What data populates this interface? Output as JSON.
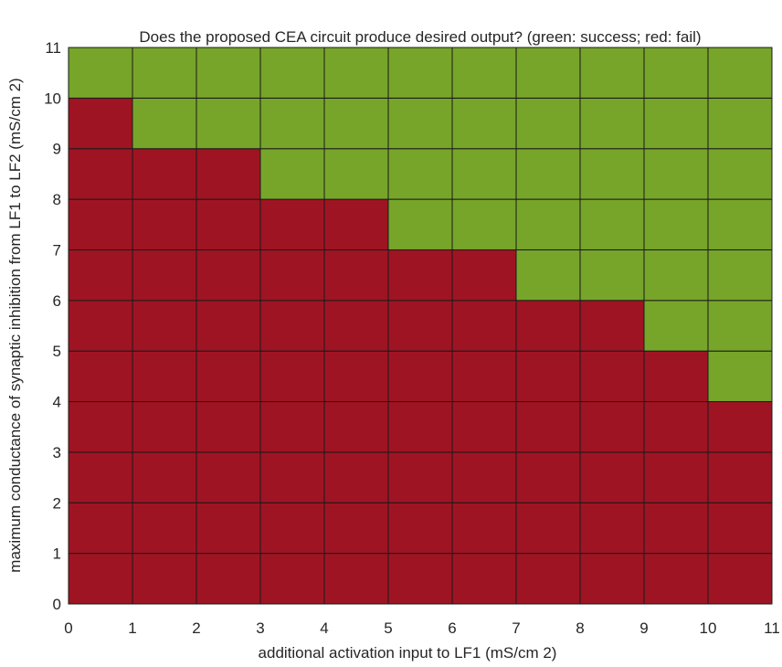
{
  "chart_data": {
    "type": "heatmap",
    "title": "Does the proposed CEA circuit produce desired output? (green: success; red: fail)",
    "xlabel": "additional activation input to LF1   (mS/cm 2)",
    "ylabel": "maximum conductance of synaptic inhibition from LF1 to LF2   (mS/cm 2)",
    "xlim": [
      0,
      11
    ],
    "ylim": [
      0,
      11
    ],
    "x_ticks": [
      "0",
      "1",
      "2",
      "3",
      "4",
      "5",
      "6",
      "7",
      "8",
      "9",
      "10",
      "11"
    ],
    "y_ticks": [
      "0",
      "1",
      "2",
      "3",
      "4",
      "5",
      "6",
      "7",
      "8",
      "9",
      "10",
      "11"
    ],
    "colors": {
      "success": "#77a52a",
      "fail": "#9f1423"
    },
    "legend": [
      {
        "label": "green: success",
        "color": "#77a52a"
      },
      {
        "label": "red: fail",
        "color": "#9f1423"
      }
    ],
    "x_bins": [
      [
        0,
        1
      ],
      [
        1,
        2
      ],
      [
        2,
        3
      ],
      [
        3,
        4
      ],
      [
        4,
        5
      ],
      [
        5,
        6
      ],
      [
        6,
        7
      ],
      [
        7,
        8
      ],
      [
        8,
        9
      ],
      [
        9,
        10
      ],
      [
        10,
        11
      ]
    ],
    "y_bins": [
      [
        0,
        1
      ],
      [
        1,
        2
      ],
      [
        2,
        3
      ],
      [
        3,
        4
      ],
      [
        4,
        5
      ],
      [
        5,
        6
      ],
      [
        6,
        7
      ],
      [
        7,
        8
      ],
      [
        8,
        9
      ],
      [
        9,
        10
      ],
      [
        10,
        11
      ]
    ],
    "success_threshold": {
      "description": "lowest inhibition conductance at which output succeeds, per activation-input bin",
      "x_bins": [
        [
          0,
          1
        ],
        [
          1,
          2
        ],
        [
          2,
          3
        ],
        [
          3,
          4
        ],
        [
          4,
          5
        ],
        [
          5,
          6
        ],
        [
          6,
          7
        ],
        [
          7,
          8
        ],
        [
          8,
          9
        ],
        [
          9,
          10
        ],
        [
          10,
          11
        ]
      ],
      "min_success_y": [
        10,
        9,
        9,
        8,
        8,
        7,
        7,
        6,
        6,
        5,
        4
      ]
    }
  }
}
